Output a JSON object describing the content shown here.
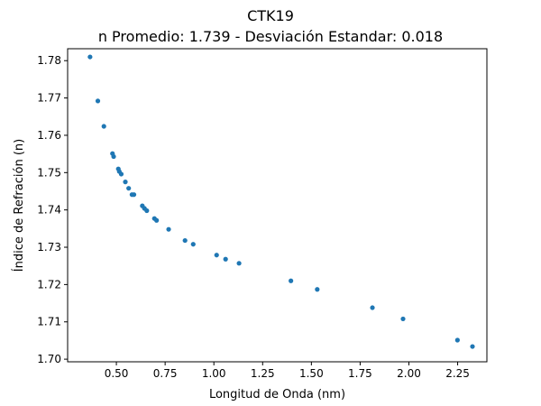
{
  "chart_data": {
    "type": "scatter",
    "title": "CTK19",
    "subtitle": "n Promedio: 1.739 - Desviación Estandar: 0.018",
    "xlabel": "Longitud de Onda (nm)",
    "ylabel": "Índice de Refración (n)",
    "xlim": [
      0.25,
      2.4
    ],
    "ylim": [
      1.6993,
      1.7832
    ],
    "x_ticks": [
      0.5,
      0.75,
      1.0,
      1.25,
      1.5,
      1.75,
      2.0,
      2.25
    ],
    "x_tick_labels": [
      "0.50",
      "0.75",
      "1.00",
      "1.25",
      "1.50",
      "1.75",
      "2.00",
      "2.25"
    ],
    "y_ticks": [
      1.7,
      1.71,
      1.72,
      1.73,
      1.74,
      1.75,
      1.76,
      1.77,
      1.78
    ],
    "y_tick_labels": [
      "1.70",
      "1.71",
      "1.72",
      "1.73",
      "1.74",
      "1.75",
      "1.76",
      "1.77",
      "1.78"
    ],
    "grid": false,
    "legend": "none",
    "marker_color": "#1f77b4",
    "series": [
      {
        "x": [
          0.365,
          0.405,
          0.436,
          0.48,
          0.486,
          0.51,
          0.515,
          0.525,
          0.546,
          0.563,
          0.58,
          0.59,
          0.633,
          0.644,
          0.656,
          0.695,
          0.706,
          0.768,
          0.852,
          0.894,
          1.014,
          1.06,
          1.129,
          1.395,
          1.53,
          1.813,
          1.97,
          2.249,
          2.326
        ],
        "y": [
          1.781,
          1.7692,
          1.7624,
          1.7551,
          1.7543,
          1.751,
          1.7503,
          1.7496,
          1.7475,
          1.7458,
          1.7441,
          1.7441,
          1.7411,
          1.7404,
          1.7398,
          1.7377,
          1.7372,
          1.7348,
          1.7318,
          1.7308,
          1.7279,
          1.7268,
          1.7257,
          1.721,
          1.7187,
          1.7138,
          1.7108,
          1.7051,
          1.7034
        ]
      }
    ]
  }
}
